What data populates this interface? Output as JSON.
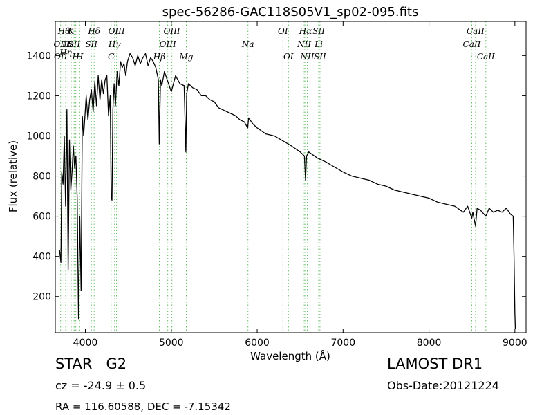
{
  "chart_data": {
    "type": "line",
    "title": "spec-56286-GAC118S05V1_sp02-095.fits",
    "xlabel": "Wavelength (Å)",
    "ylabel": "Flux (relative)",
    "xlim": [
      3650,
      9130
    ],
    "ylim": [
      20,
      1570
    ],
    "xticks": [
      4000,
      5000,
      6000,
      7000,
      8000,
      9000
    ],
    "yticks": [
      200,
      400,
      600,
      800,
      1000,
      1200,
      1400
    ],
    "grid": false,
    "line_color": "#000000",
    "marker_color": "#66bb66",
    "series": [
      {
        "x": [
          3700,
          3715,
          3725,
          3740,
          3755,
          3770,
          3785,
          3800,
          3815,
          3830,
          3845,
          3860,
          3875,
          3890,
          3905,
          3920,
          3935,
          3950,
          3965,
          3980,
          3995,
          4010,
          4030,
          4050,
          4070,
          4090,
          4110,
          4130,
          4150,
          4170,
          4190,
          4210,
          4230,
          4250,
          4270,
          4290,
          4300,
          4310,
          4320,
          4335,
          4350,
          4370,
          4390,
          4410,
          4430,
          4450,
          4470,
          4490,
          4520,
          4550,
          4580,
          4610,
          4640,
          4670,
          4700,
          4730,
          4760,
          4790,
          4820,
          4850,
          4860,
          4875,
          4890,
          4920,
          4960,
          5000,
          5050,
          5100,
          5150,
          5170,
          5180,
          5200,
          5250,
          5300,
          5350,
          5400,
          5450,
          5500,
          5550,
          5600,
          5650,
          5700,
          5750,
          5800,
          5850,
          5890,
          5900,
          5950,
          6000,
          6100,
          6200,
          6300,
          6400,
          6500,
          6550,
          6563,
          6575,
          6600,
          6700,
          6800,
          6900,
          7000,
          7100,
          7200,
          7300,
          7400,
          7500,
          7600,
          7700,
          7800,
          7900,
          8000,
          8100,
          8200,
          8300,
          8400,
          8450,
          8498,
          8510,
          8542,
          8560,
          8600,
          8662,
          8700,
          8750,
          8800,
          8850,
          8900,
          8950,
          8980,
          8990,
          9000,
          9005
        ],
        "y": [
          430,
          370,
          820,
          760,
          1000,
          650,
          1130,
          330,
          980,
          730,
          820,
          950,
          840,
          900,
          690,
          90,
          600,
          230,
          1100,
          1000,
          1100,
          1200,
          1080,
          1180,
          1230,
          1120,
          1270,
          1150,
          1300,
          1180,
          1280,
          1210,
          1280,
          1300,
          1100,
          1200,
          700,
          680,
          1130,
          1260,
          1150,
          1320,
          1250,
          1370,
          1340,
          1360,
          1300,
          1370,
          1410,
          1390,
          1350,
          1400,
          1360,
          1390,
          1410,
          1350,
          1390,
          1370,
          1340,
          1280,
          960,
          1280,
          1250,
          1320,
          1270,
          1220,
          1300,
          1260,
          1250,
          920,
          1210,
          1260,
          1240,
          1230,
          1200,
          1200,
          1180,
          1170,
          1140,
          1130,
          1120,
          1110,
          1100,
          1080,
          1070,
          1040,
          1090,
          1060,
          1040,
          1010,
          1000,
          975,
          950,
          920,
          900,
          780,
          900,
          920,
          890,
          870,
          845,
          820,
          800,
          790,
          780,
          760,
          750,
          730,
          720,
          710,
          700,
          690,
          670,
          660,
          650,
          620,
          650,
          590,
          620,
          550,
          640,
          630,
          600,
          640,
          620,
          630,
          620,
          640,
          610,
          600,
          400,
          120,
          40
        ]
      }
    ],
    "line_markers": [
      {
        "x": 3712,
        "label": "OII",
        "row": 2
      },
      {
        "x": 3727,
        "label": "OIII",
        "row": 1
      },
      {
        "x": 3750,
        "label": "Hθ",
        "row": 0
      },
      {
        "x": 3771,
        "label": "Hη",
        "row": 3
      },
      {
        "x": 3798,
        "label": "Hε",
        "row": 1
      },
      {
        "x": 3835,
        "label": "K",
        "row": 0
      },
      {
        "x": 3869,
        "label": "SII",
        "row": 1
      },
      {
        "x": 3889,
        "label": "H",
        "row": 2
      },
      {
        "x": 3934,
        "label": "H",
        "row": 2
      },
      {
        "x": 4070,
        "label": "SII",
        "row": 1
      },
      {
        "x": 4102,
        "label": "Hδ",
        "row": 0
      },
      {
        "x": 4300,
        "label": "G",
        "row": 2
      },
      {
        "x": 4340,
        "label": "Hγ",
        "row": 1
      },
      {
        "x": 4363,
        "label": "OIII",
        "row": 0
      },
      {
        "x": 4861,
        "label": "Hβ",
        "row": 2
      },
      {
        "x": 4959,
        "label": "OIII",
        "row": 1
      },
      {
        "x": 5007,
        "label": "OIII",
        "row": 0
      },
      {
        "x": 5175,
        "label": "Mg",
        "row": 2
      },
      {
        "x": 5893,
        "label": "Na",
        "row": 1
      },
      {
        "x": 6300,
        "label": "OI",
        "row": 0
      },
      {
        "x": 6364,
        "label": "OI",
        "row": 2
      },
      {
        "x": 6548,
        "label": "NII",
        "row": 1
      },
      {
        "x": 6563,
        "label": "Hα",
        "row": 0
      },
      {
        "x": 6583,
        "label": "NII",
        "row": 2
      },
      {
        "x": 6716,
        "label": "SII",
        "row": 0
      },
      {
        "x": 6716,
        "label": "Li",
        "row": 1
      },
      {
        "x": 6731,
        "label": "SII",
        "row": 2
      },
      {
        "x": 8498,
        "label": "CaII",
        "row": 1
      },
      {
        "x": 8542,
        "label": "CaII",
        "row": 0
      },
      {
        "x": 8662,
        "label": "CaII",
        "row": 2
      }
    ]
  },
  "info": {
    "class_line": "STAR   G2",
    "redshift_line": "cz = -24.9 ± 0.5",
    "coords_line": "RA = 116.60588, DEC = -7.15342",
    "survey": "LAMOST DR1",
    "obs_date": "Obs-Date:20121224"
  }
}
